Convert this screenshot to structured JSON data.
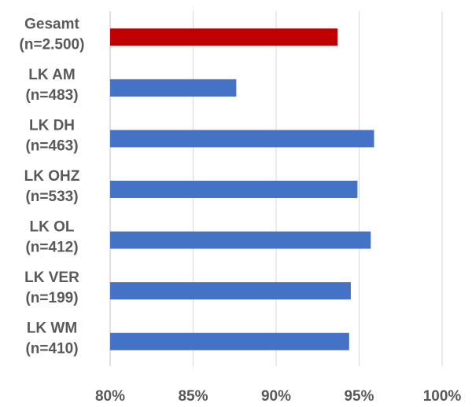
{
  "chart_data": {
    "type": "bar",
    "orientation": "horizontal",
    "title": "",
    "xlabel": "",
    "ylabel": "",
    "categories": [
      [
        "Gesamt",
        "(n=2.500)"
      ],
      [
        "LK AM",
        "(n=483)"
      ],
      [
        "LK DH",
        "(n=463)"
      ],
      [
        "LK OHZ",
        "(n=533)"
      ],
      [
        "LK OL",
        "(n=412)"
      ],
      [
        "LK VER",
        "(n=199)"
      ],
      [
        "LK WM",
        "(n=410)"
      ]
    ],
    "values": [
      93.7,
      87.6,
      95.9,
      94.9,
      95.7,
      94.5,
      94.4
    ],
    "bar_colors": [
      "#c00000",
      "#4472c4",
      "#4472c4",
      "#4472c4",
      "#4472c4",
      "#4472c4",
      "#4472c4"
    ],
    "xlim": [
      80,
      100
    ],
    "xticks": [
      80,
      85,
      90,
      95,
      100
    ],
    "xtick_labels": [
      "80%",
      "85%",
      "90%",
      "95%",
      "100%"
    ],
    "grid": true,
    "legend": "none"
  }
}
